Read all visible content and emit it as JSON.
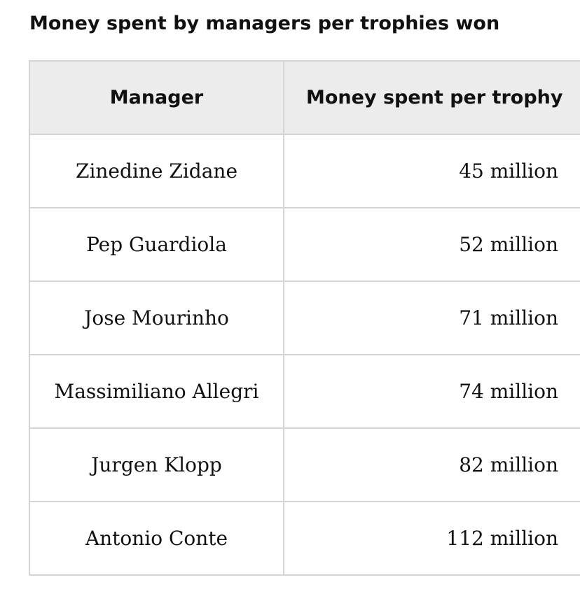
{
  "title": "Money spent by managers per trophies won",
  "table": {
    "headers": [
      "Manager",
      "Money spent per trophy"
    ],
    "rows": [
      {
        "manager": "Zinedine Zidane",
        "money": "45 million"
      },
      {
        "manager": "Pep Guardiola",
        "money": "52 million"
      },
      {
        "manager": "Jose Mourinho",
        "money": "71 million"
      },
      {
        "manager": "Massimiliano Allegri",
        "money": "74 million"
      },
      {
        "manager": "Jurgen Klopp",
        "money": "82 million"
      },
      {
        "manager": "Antonio Conte",
        "money": "112 million"
      }
    ]
  }
}
